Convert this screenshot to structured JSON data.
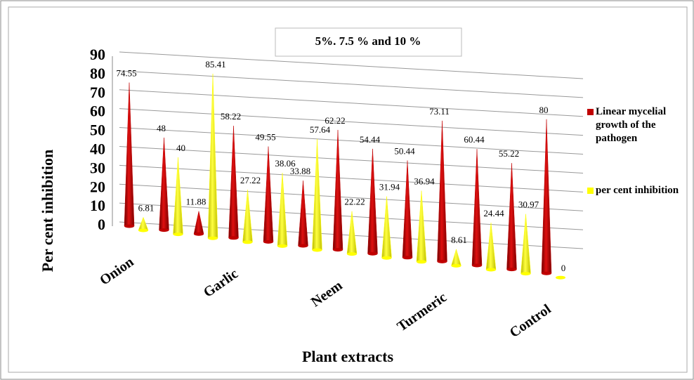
{
  "chart_data": {
    "type": "bar3d",
    "title": "5%. 7.5 %  and 10 %",
    "x_label": "Plant extracts",
    "y_label": "Per cent inhibition",
    "categories": [
      "Onion",
      null,
      null,
      "Garlic",
      null,
      null,
      "Neem",
      null,
      null,
      "Turmeric",
      null,
      null,
      "Control"
    ],
    "series": [
      {
        "name": "Linear mycelial growth of the pathogen",
        "color": "#c00000",
        "values": [
          74.55,
          48,
          11.88,
          58.22,
          49.55,
          33.88,
          62.22,
          54.44,
          50.44,
          73.11,
          60.44,
          55.22,
          80
        ]
      },
      {
        "name": "per cent inhibition",
        "color": "#ffff00",
        "values": [
          6.81,
          40,
          85.41,
          27.22,
          38.06,
          57.64,
          22.22,
          31.94,
          36.94,
          8.61,
          24.44,
          30.97,
          0
        ]
      }
    ],
    "ylim": [
      0,
      90
    ],
    "yticks": [
      0,
      10,
      20,
      30,
      40,
      50,
      60,
      70,
      80,
      90
    ],
    "grid": true
  }
}
